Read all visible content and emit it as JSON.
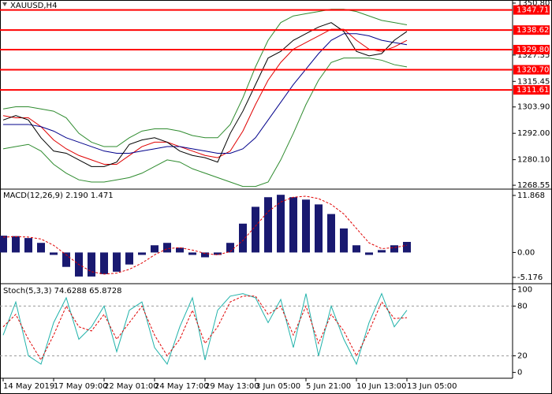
{
  "chart_data": [
    {
      "type": "line",
      "title": "XAUUSD,H4",
      "color": "#000000",
      "values": [
        1298,
        1300,
        1298,
        1290,
        1284,
        1283,
        1280,
        1277,
        1277,
        1279,
        1287,
        1289,
        1290,
        1288,
        1284,
        1282,
        1281,
        1279,
        1292,
        1302,
        1314,
        1326,
        1329,
        1334,
        1337,
        1340,
        1342,
        1338,
        1329,
        1327,
        1328,
        1334,
        1338
      ],
      "lines": [
        {
          "color": "#e00000",
          "values": [
            1300,
            1299,
            1299,
            1295,
            1289,
            1285,
            1282,
            1280,
            1278,
            1278,
            1282,
            1286,
            1288,
            1288,
            1286,
            1284,
            1282,
            1281,
            1284,
            1293,
            1305,
            1316,
            1324,
            1330,
            1333,
            1336,
            1339,
            1339,
            1334,
            1330,
            1329,
            1331,
            1334
          ]
        },
        {
          "color": "#00008b",
          "values": [
            1296,
            1296,
            1296,
            1295,
            1293,
            1290,
            1288,
            1286,
            1284,
            1283,
            1283,
            1284,
            1285,
            1286,
            1286,
            1285,
            1284,
            1283,
            1283,
            1285,
            1290,
            1298,
            1306,
            1314,
            1321,
            1328,
            1334,
            1337,
            1337,
            1336,
            1334,
            1333,
            1332
          ]
        },
        {
          "color": "#2e8b2e",
          "values": [
            1303,
            1304,
            1304,
            1303,
            1302,
            1299,
            1292,
            1288,
            1286,
            1286,
            1290,
            1293,
            1294,
            1294,
            1293,
            1291,
            1290,
            1290,
            1296,
            1308,
            1322,
            1334,
            1342,
            1345,
            1346,
            1347,
            1348,
            1348,
            1347,
            1345,
            1343,
            1342,
            1341
          ]
        },
        {
          "color": "#2e8b2e",
          "values": [
            1285,
            1286,
            1287,
            1284,
            1278,
            1274,
            1271,
            1270,
            1270,
            1271,
            1272,
            1274,
            1277,
            1280,
            1279,
            1276,
            1274,
            1272,
            1270,
            1268,
            1268,
            1270,
            1280,
            1292,
            1305,
            1316,
            1324,
            1326,
            1326,
            1326,
            1325,
            1323,
            1322
          ]
        }
      ],
      "ylim": [
        1266.8,
        1352.2
      ],
      "yticks": [
        {
          "value": 1350.8,
          "label": "1350.80"
        },
        {
          "value": 1327.35,
          "label": "1327.35"
        },
        {
          "value": 1315.45,
          "label": "1315.45"
        },
        {
          "value": 1303.9,
          "label": "1303.90"
        },
        {
          "value": 1292,
          "label": "1292.00"
        },
        {
          "value": 1280.1,
          "label": "1280.10"
        },
        {
          "value": 1268.55,
          "label": "1268.55"
        }
      ],
      "levels": [
        1347.71,
        1338.62,
        {
          "value": 1329.8,
          "label": "1329.80"
        },
        {
          "value": 1320.7,
          "label": "1320.70"
        },
        1311.61
      ],
      "level_color": "#ff0000"
    },
    {
      "type": "bar",
      "title": "MACD(12,26,9) 2.190 1.471",
      "color": "#191970",
      "values": [
        3.5,
        3.4,
        3.0,
        2.0,
        -0.5,
        -3,
        -5,
        -5,
        -4.5,
        -4,
        -2.5,
        -0.5,
        1.5,
        2,
        1,
        -0.5,
        -1,
        -0.5,
        2,
        6,
        9.5,
        11.5,
        12,
        11.5,
        11,
        10,
        8,
        5,
        1.5,
        -0.5,
        0.5,
        1.5,
        2.2
      ],
      "signal": [
        3.2,
        3.3,
        3.2,
        2.8,
        1.5,
        -0.5,
        -2.5,
        -4,
        -4.5,
        -4.3,
        -3.5,
        -2.2,
        -0.5,
        0.8,
        1,
        0.5,
        -0.2,
        -0.5,
        0.2,
        2.5,
        5.5,
        8.5,
        10.5,
        11.5,
        11.7,
        11.2,
        10,
        8,
        5,
        2,
        0.8,
        1,
        1.5
      ],
      "signal_color": "#e00000",
      "ylim": [
        -6.49,
        13.18
      ],
      "yticks": [
        11.868,
        {
          "value": 0,
          "label": "0.00"
        },
        -5.176
      ]
    },
    {
      "type": "line",
      "title": "Stoch(5,3,3) 74.6288 65.8728",
      "categories": [
        "14 May 2019",
        null,
        null,
        null,
        "17 May 09:00",
        null,
        null,
        null,
        "22 May 01:00",
        null,
        null,
        null,
        "24 May 17:00",
        null,
        null,
        null,
        "29 May 13:00",
        null,
        null,
        null,
        "3 Jun 05:00",
        null,
        null,
        null,
        "5 Jun 21:00",
        null,
        null,
        null,
        "10 Jun 13:00",
        null,
        null,
        null,
        "13 Jun 05:00"
      ],
      "series": [
        {
          "color": "#20b2aa",
          "values": [
            45,
            85,
            20,
            10,
            60,
            90,
            40,
            55,
            80,
            25,
            75,
            85,
            30,
            10,
            55,
            90,
            15,
            75,
            92,
            95,
            90,
            60,
            88,
            30,
            95,
            20,
            80,
            40,
            10,
            60,
            95,
            55,
            75
          ]
        },
        {
          "color": "#e00000",
          "dashed": true,
          "values": [
            55,
            70,
            40,
            15,
            45,
            80,
            55,
            50,
            70,
            40,
            60,
            80,
            45,
            20,
            40,
            75,
            35,
            55,
            85,
            92,
            92,
            70,
            80,
            45,
            80,
            35,
            70,
            50,
            20,
            50,
            85,
            65,
            66
          ]
        }
      ],
      "ylim": [
        -7,
        107
      ],
      "yticks": [
        100,
        80,
        20,
        0
      ],
      "levels": [
        80,
        20
      ]
    }
  ]
}
